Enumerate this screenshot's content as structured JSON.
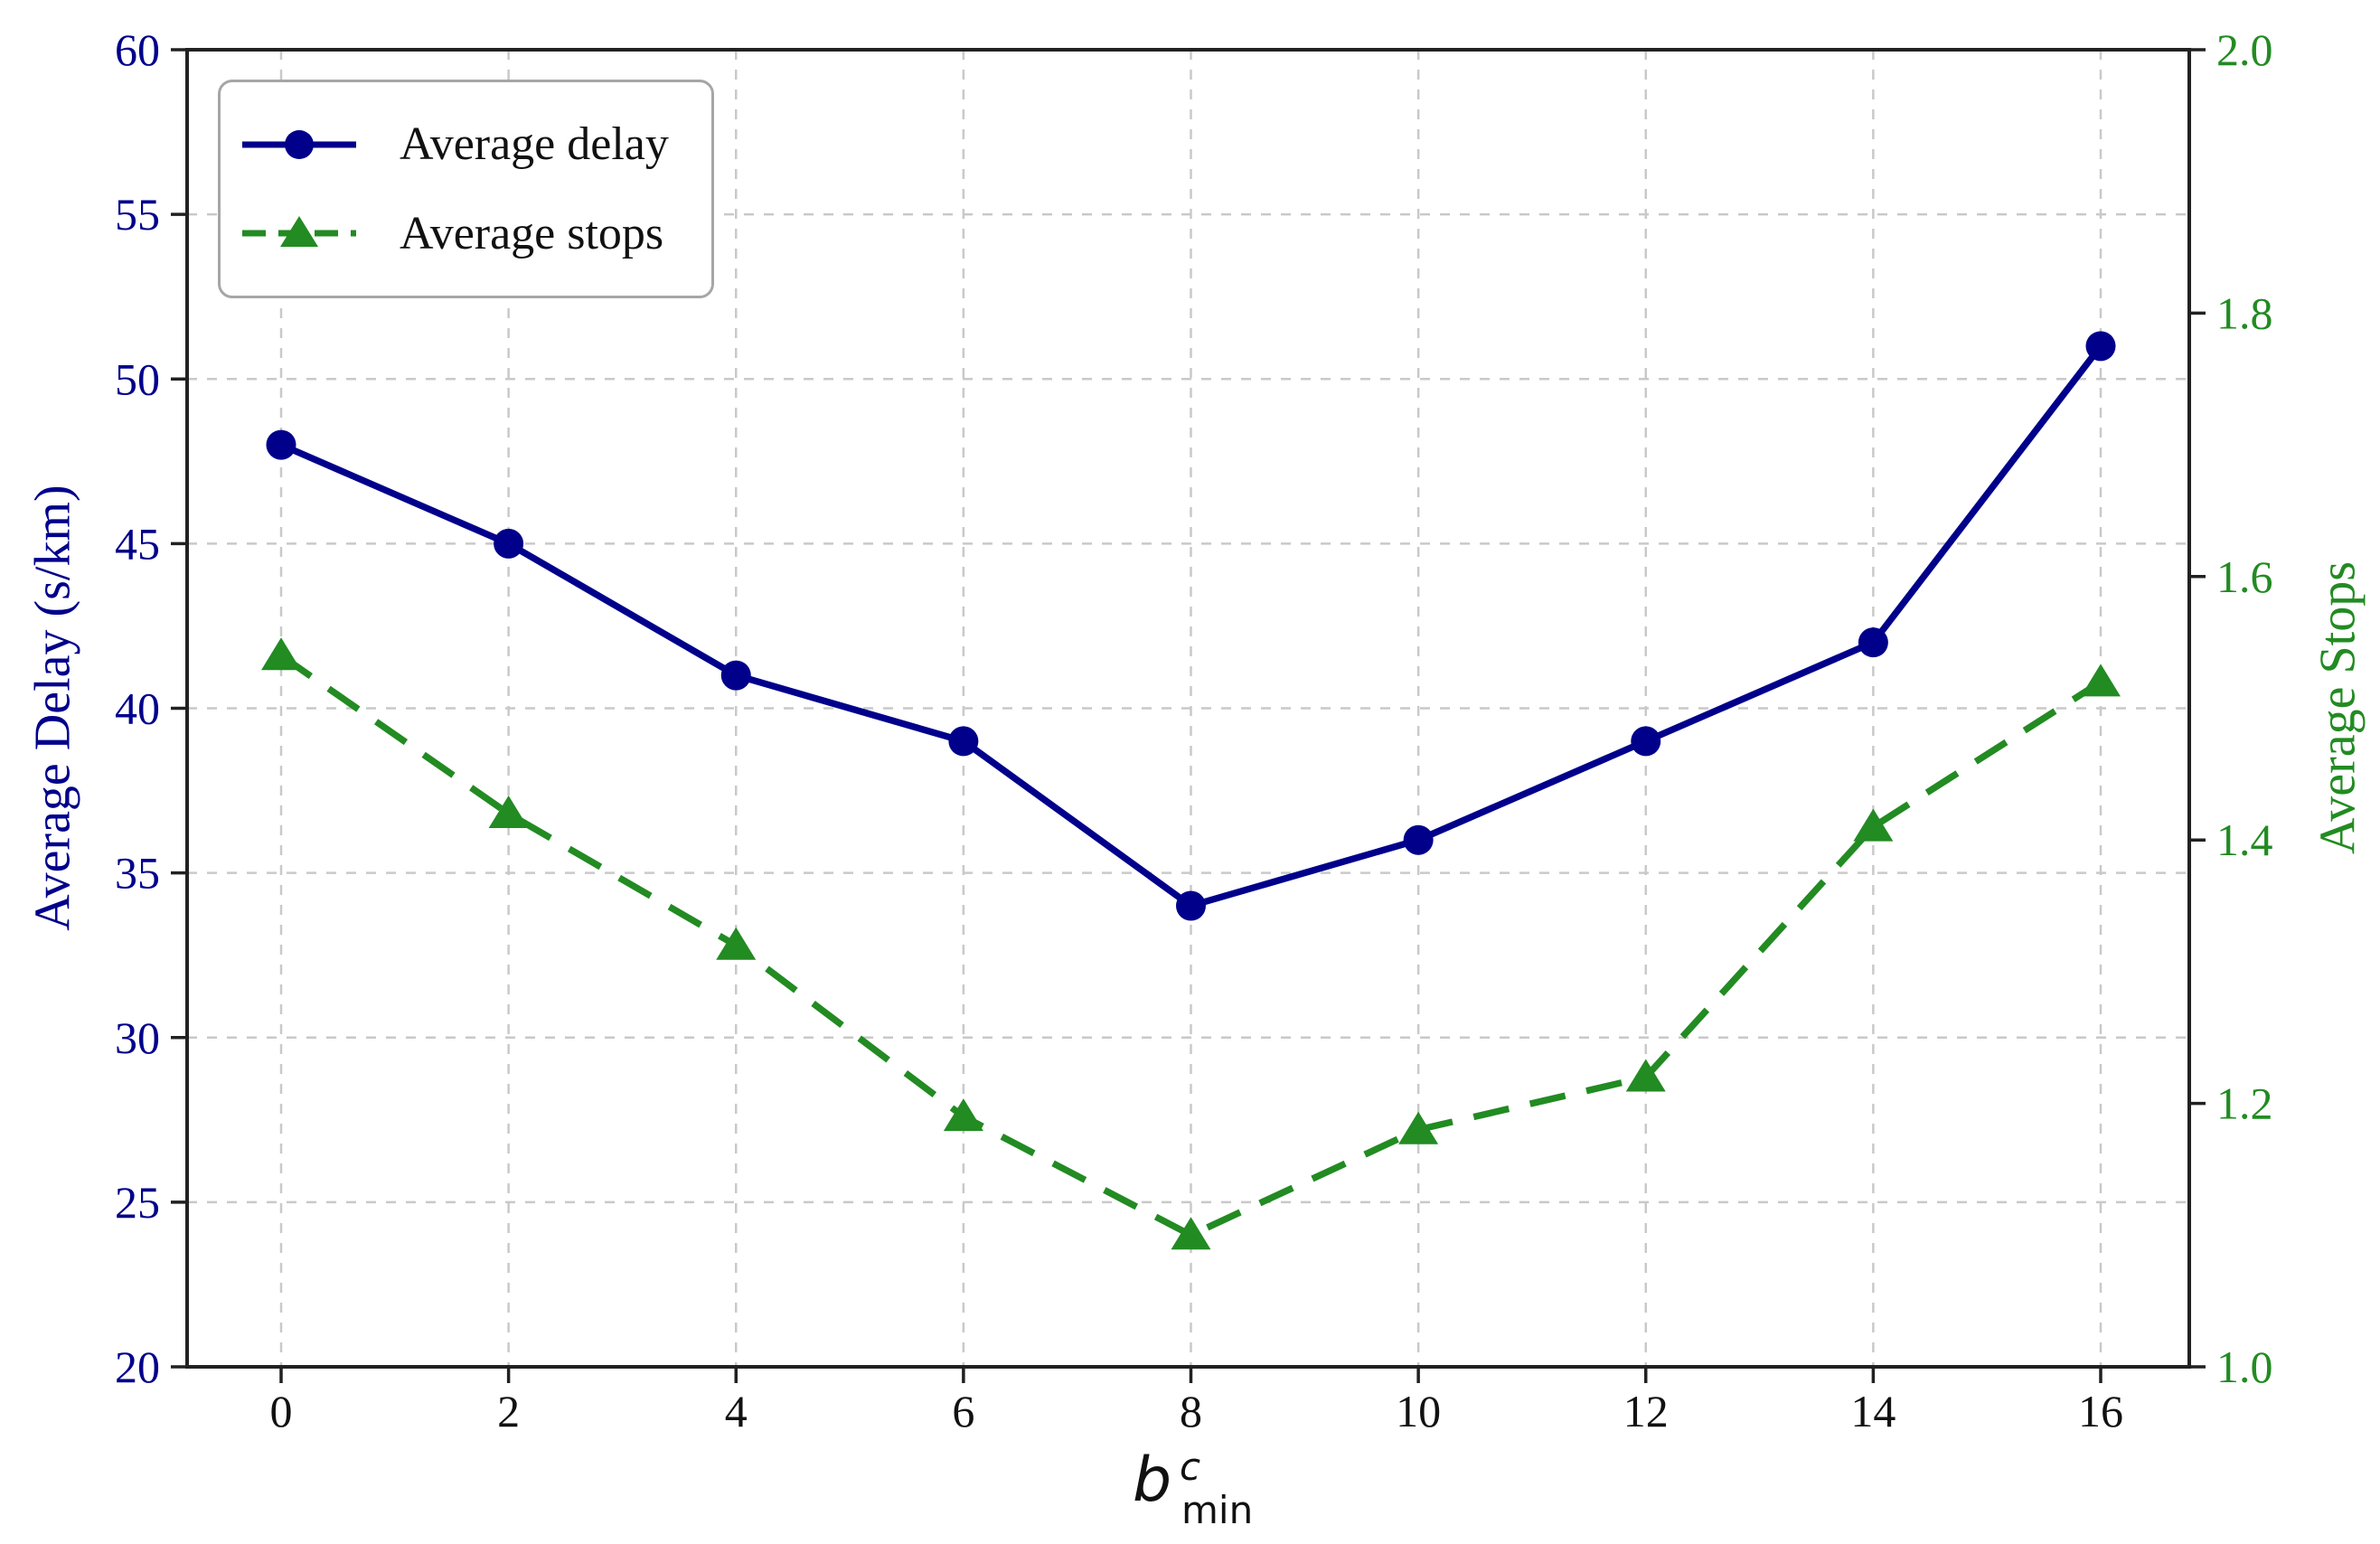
{
  "chart_data": {
    "type": "line",
    "x": [
      0,
      2,
      4,
      6,
      8,
      10,
      12,
      14,
      16
    ],
    "x_tick_labels": [
      "0",
      "2",
      "4",
      "6",
      "8",
      "10",
      "12",
      "14",
      "16"
    ],
    "xlabel": {
      "base": "b",
      "superscript": "c",
      "subscript": "min"
    },
    "left_axis": {
      "label": "Average Delay (s/km)",
      "color": "#00008b",
      "min": 20,
      "max": 60,
      "tick_labels": [
        "20",
        "25",
        "30",
        "35",
        "40",
        "45",
        "50",
        "55",
        "60"
      ]
    },
    "right_axis": {
      "label": "Average Stops",
      "color": "#228b22",
      "min": 1.0,
      "max": 2.0,
      "tick_labels": [
        "1.0",
        "1.2",
        "1.4",
        "1.6",
        "1.8",
        "2.0"
      ]
    },
    "grid": {
      "show": true,
      "line_style": "dashed",
      "color": "#c9c9c9"
    },
    "frame_color": "#212121",
    "legend": {
      "position": "upper left",
      "border_color": "#a6a6a6",
      "text_color": "#111111"
    },
    "series": [
      {
        "name": "Average delay",
        "axis": "left",
        "color": "#00008b",
        "line_style": "solid",
        "marker": "circle",
        "values": [
          48,
          45,
          41,
          39,
          34,
          36,
          39,
          42,
          51
        ]
      },
      {
        "name": "Average stops",
        "axis": "right",
        "color": "#228b22",
        "line_style": "dashed",
        "marker": "triangle-up",
        "values": [
          1.54,
          1.42,
          1.32,
          1.19,
          1.1,
          1.18,
          1.22,
          1.41,
          1.52
        ]
      }
    ]
  }
}
